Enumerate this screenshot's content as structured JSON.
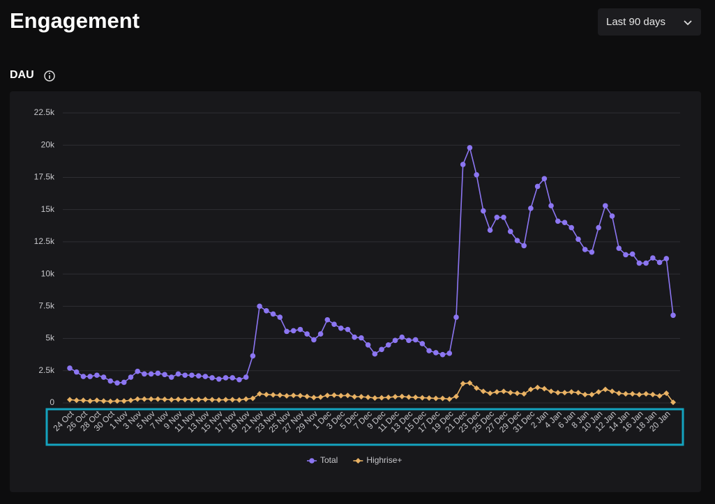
{
  "header": {
    "title": "Engagement",
    "range_select": "Last 90 days"
  },
  "section": {
    "title": "DAU"
  },
  "chart_data": {
    "type": "line",
    "categories": [
      "24 Oct",
      null,
      "26 Oct",
      null,
      "28 Oct",
      null,
      "30 Oct",
      null,
      "1 Nov",
      null,
      "3 Nov",
      null,
      "5 Nov",
      null,
      "7 Nov",
      null,
      "9 Nov",
      null,
      "11 Nov",
      null,
      "13 Nov",
      null,
      "15 Nov",
      null,
      "17 Nov",
      null,
      "19 Nov",
      null,
      "21 Nov",
      null,
      "23 Nov",
      null,
      "25 Nov",
      null,
      "27 Nov",
      null,
      "29 Nov",
      null,
      "1 Dec",
      null,
      "3 Dec",
      null,
      "5 Dec",
      null,
      "7 Dec",
      null,
      "9 Dec",
      null,
      "11 Dec",
      null,
      "13 Dec",
      null,
      "15 Dec",
      null,
      "17 Dec",
      null,
      "19 Dec",
      null,
      "21 Dec",
      null,
      "23 Dec",
      null,
      "25 Dec",
      null,
      "27 Dec",
      null,
      "29 Dec",
      null,
      "31 Dec",
      null,
      "2 Jan",
      null,
      "4 Jan",
      null,
      "6 Jan",
      null,
      "8 Jan",
      null,
      "10 Jan",
      null,
      "12 Jan",
      null,
      "14 Jan",
      null,
      "16 Jan",
      null,
      "18 Jan",
      null,
      "20 Jan",
      null
    ],
    "series": [
      {
        "name": "Total",
        "color": "#8c76f2",
        "marker": "circle",
        "values": [
          2700,
          2400,
          2050,
          2050,
          2150,
          2000,
          1700,
          1550,
          1600,
          2000,
          2450,
          2250,
          2250,
          2300,
          2200,
          2000,
          2250,
          2150,
          2150,
          2100,
          2050,
          1950,
          1850,
          1950,
          1950,
          1800,
          2000,
          3650,
          7500,
          7150,
          6900,
          6650,
          5550,
          5600,
          5700,
          5350,
          4900,
          5350,
          6450,
          6100,
          5800,
          5700,
          5100,
          5050,
          4500,
          3800,
          4150,
          4500,
          4850,
          5100,
          4850,
          4900,
          4600,
          4050,
          3900,
          3750,
          3850,
          6650,
          18500,
          19800,
          17700,
          14900,
          13400,
          14400,
          14400,
          13300,
          12600,
          12200,
          15100,
          16800,
          17400,
          15300,
          14100,
          14000,
          13600,
          12700,
          11900,
          11700,
          13600,
          15300,
          14500,
          12000,
          11500,
          11550,
          10850,
          10850,
          11250,
          10900,
          11200,
          6800
        ]
      },
      {
        "name": "Highrise+",
        "color": "#e9b264",
        "marker": "diamond",
        "values": [
          250,
          200,
          200,
          150,
          200,
          150,
          120,
          150,
          150,
          200,
          300,
          300,
          300,
          300,
          280,
          250,
          280,
          260,
          260,
          260,
          270,
          250,
          230,
          250,
          250,
          230,
          300,
          350,
          700,
          650,
          620,
          600,
          550,
          580,
          560,
          500,
          420,
          450,
          580,
          600,
          560,
          580,
          480,
          480,
          440,
          380,
          400,
          430,
          480,
          500,
          450,
          430,
          400,
          380,
          350,
          350,
          300,
          500,
          1500,
          1550,
          1150,
          900,
          750,
          850,
          900,
          800,
          750,
          700,
          1050,
          1200,
          1100,
          900,
          800,
          800,
          850,
          800,
          650,
          650,
          850,
          1050,
          900,
          750,
          700,
          700,
          650,
          700,
          650,
          550,
          750,
          50
        ]
      }
    ],
    "ylim": [
      0,
      22500
    ],
    "yticks": [
      0,
      {
        "value": 2500,
        "label": "2.5k"
      },
      {
        "value": 5000,
        "label": "5k"
      },
      {
        "value": 7500,
        "label": "7.5k"
      },
      {
        "value": 10000,
        "label": "10k"
      },
      {
        "value": 12500,
        "label": "12.5k"
      },
      {
        "value": 15000,
        "label": "15k"
      },
      {
        "value": 17500,
        "label": "17.5k"
      },
      {
        "value": 20000,
        "label": "20k"
      },
      {
        "value": 22500,
        "label": "22.5k"
      }
    ],
    "grid": true,
    "legend": "bottom"
  }
}
